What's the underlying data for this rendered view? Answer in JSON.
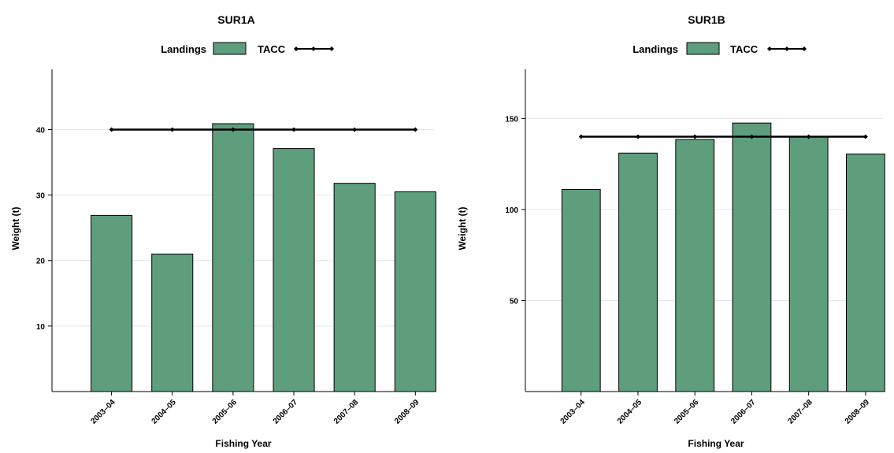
{
  "chart_data": [
    {
      "type": "bar",
      "title": "SUR1A",
      "xlabel": "Fishing Year",
      "ylabel": "Weight (t)",
      "categories": [
        "2003–04",
        "2004–05",
        "2005–06",
        "2006–07",
        "2007–08",
        "2008–09"
      ],
      "series": [
        {
          "name": "Landings",
          "type": "bar",
          "color": "#5e9e7d",
          "values": [
            26.9,
            21.0,
            40.9,
            37.1,
            31.8,
            30.5
          ]
        },
        {
          "name": "TACC",
          "type": "line",
          "color": "#000000",
          "values": [
            40,
            40,
            40,
            40,
            40,
            40
          ]
        }
      ],
      "ylim": [
        0,
        49.2
      ],
      "yticks": [
        10,
        20,
        30,
        40
      ],
      "grid": true,
      "legend_position": "top"
    },
    {
      "type": "bar",
      "title": "SUR1B",
      "xlabel": "Fishing Year",
      "ylabel": "Weight (t)",
      "categories": [
        "2003–04",
        "2004–05",
        "2005–06",
        "2006–07",
        "2007–08",
        "2008–09"
      ],
      "series": [
        {
          "name": "Landings",
          "type": "bar",
          "color": "#5e9e7d",
          "values": [
            111,
            131,
            138.5,
            147.5,
            140,
            130.5
          ]
        },
        {
          "name": "TACC",
          "type": "line",
          "color": "#000000",
          "values": [
            140,
            140,
            140,
            140,
            140,
            140
          ]
        }
      ],
      "ylim": [
        0,
        177
      ],
      "yticks": [
        50,
        100,
        150
      ],
      "grid": true,
      "legend_position": "top"
    }
  ]
}
